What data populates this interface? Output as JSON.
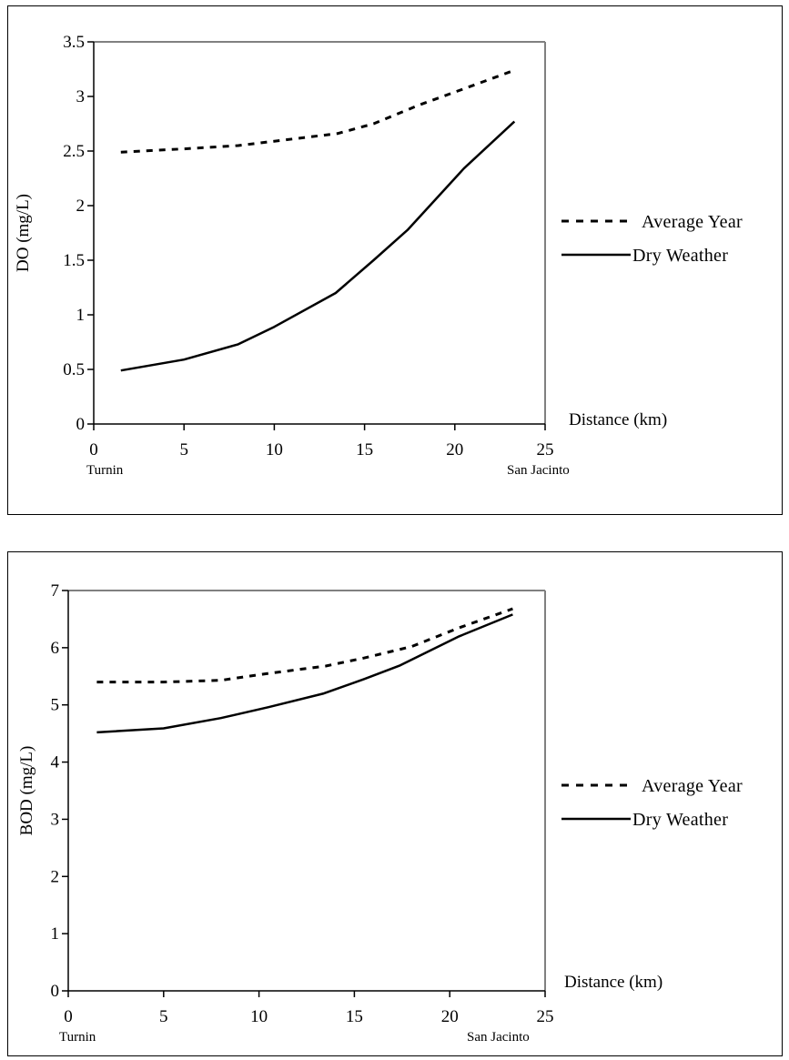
{
  "chart_data": [
    {
      "type": "line",
      "title": "",
      "xlabel": "Distance (km)",
      "ylabel": "DO (mg/L)",
      "xlim": [
        0,
        25
      ],
      "ylim": [
        0,
        3.5
      ],
      "x_ticks": [
        0,
        5,
        10,
        15,
        20,
        25
      ],
      "x_tick_labels": [
        "0",
        "5",
        "10",
        "15",
        "20",
        "25"
      ],
      "y_ticks": [
        0,
        0.5,
        1,
        1.5,
        2,
        2.5,
        3,
        3.5
      ],
      "y_tick_labels": [
        "0",
        "0.5",
        "1",
        "1.5",
        "2",
        "2.5",
        "3",
        "3.5"
      ],
      "location_labels": [
        {
          "text": "Turnin",
          "x": 0
        },
        {
          "text": "San Jacinto",
          "x": 23
        }
      ],
      "grid": false,
      "legend_position": "right",
      "series": [
        {
          "name": "Average Year",
          "style": "dashed",
          "color": "#000000",
          "x": [
            1.5,
            5,
            8,
            10.5,
            13.5,
            15.5,
            18,
            20.5,
            23.3
          ],
          "values": [
            2.49,
            2.52,
            2.55,
            2.6,
            2.66,
            2.75,
            2.92,
            3.07,
            3.24
          ]
        },
        {
          "name": "Dry Weather",
          "style": "solid",
          "color": "#000000",
          "x": [
            1.5,
            5,
            8,
            10,
            13.4,
            15.5,
            17.4,
            20.5,
            23.3
          ],
          "values": [
            0.49,
            0.59,
            0.73,
            0.89,
            1.2,
            1.5,
            1.78,
            2.34,
            2.77
          ]
        }
      ]
    },
    {
      "type": "line",
      "title": "",
      "xlabel": "Distance (km)",
      "ylabel": "BOD (mg/L)",
      "xlim": [
        0,
        25
      ],
      "ylim": [
        0,
        7
      ],
      "x_ticks": [
        0,
        5,
        10,
        15,
        20,
        25
      ],
      "x_tick_labels": [
        "0",
        "5",
        "10",
        "15",
        "20",
        "25"
      ],
      "y_ticks": [
        0,
        1,
        2,
        3,
        4,
        5,
        6,
        7
      ],
      "y_tick_labels": [
        "0",
        "1",
        "2",
        "3",
        "4",
        "5",
        "6",
        "7"
      ],
      "location_labels": [
        {
          "text": "Turnin",
          "x": 0
        },
        {
          "text": "San Jacinto",
          "x": 20
        }
      ],
      "grid": false,
      "legend_position": "right",
      "series": [
        {
          "name": "Average Year",
          "style": "dashed",
          "color": "#000000",
          "x": [
            1.5,
            5,
            8,
            10.5,
            13.5,
            15.5,
            18,
            20.5,
            23.3
          ],
          "values": [
            5.4,
            5.4,
            5.43,
            5.55,
            5.68,
            5.82,
            6.02,
            6.35,
            6.68
          ]
        },
        {
          "name": "Dry Weather",
          "style": "solid",
          "color": "#000000",
          "x": [
            1.5,
            5,
            8,
            10.5,
            13.4,
            15.5,
            17.4,
            20.5,
            23.3
          ],
          "values": [
            4.52,
            4.59,
            4.77,
            4.96,
            5.2,
            5.45,
            5.69,
            6.2,
            6.58
          ]
        }
      ]
    }
  ]
}
